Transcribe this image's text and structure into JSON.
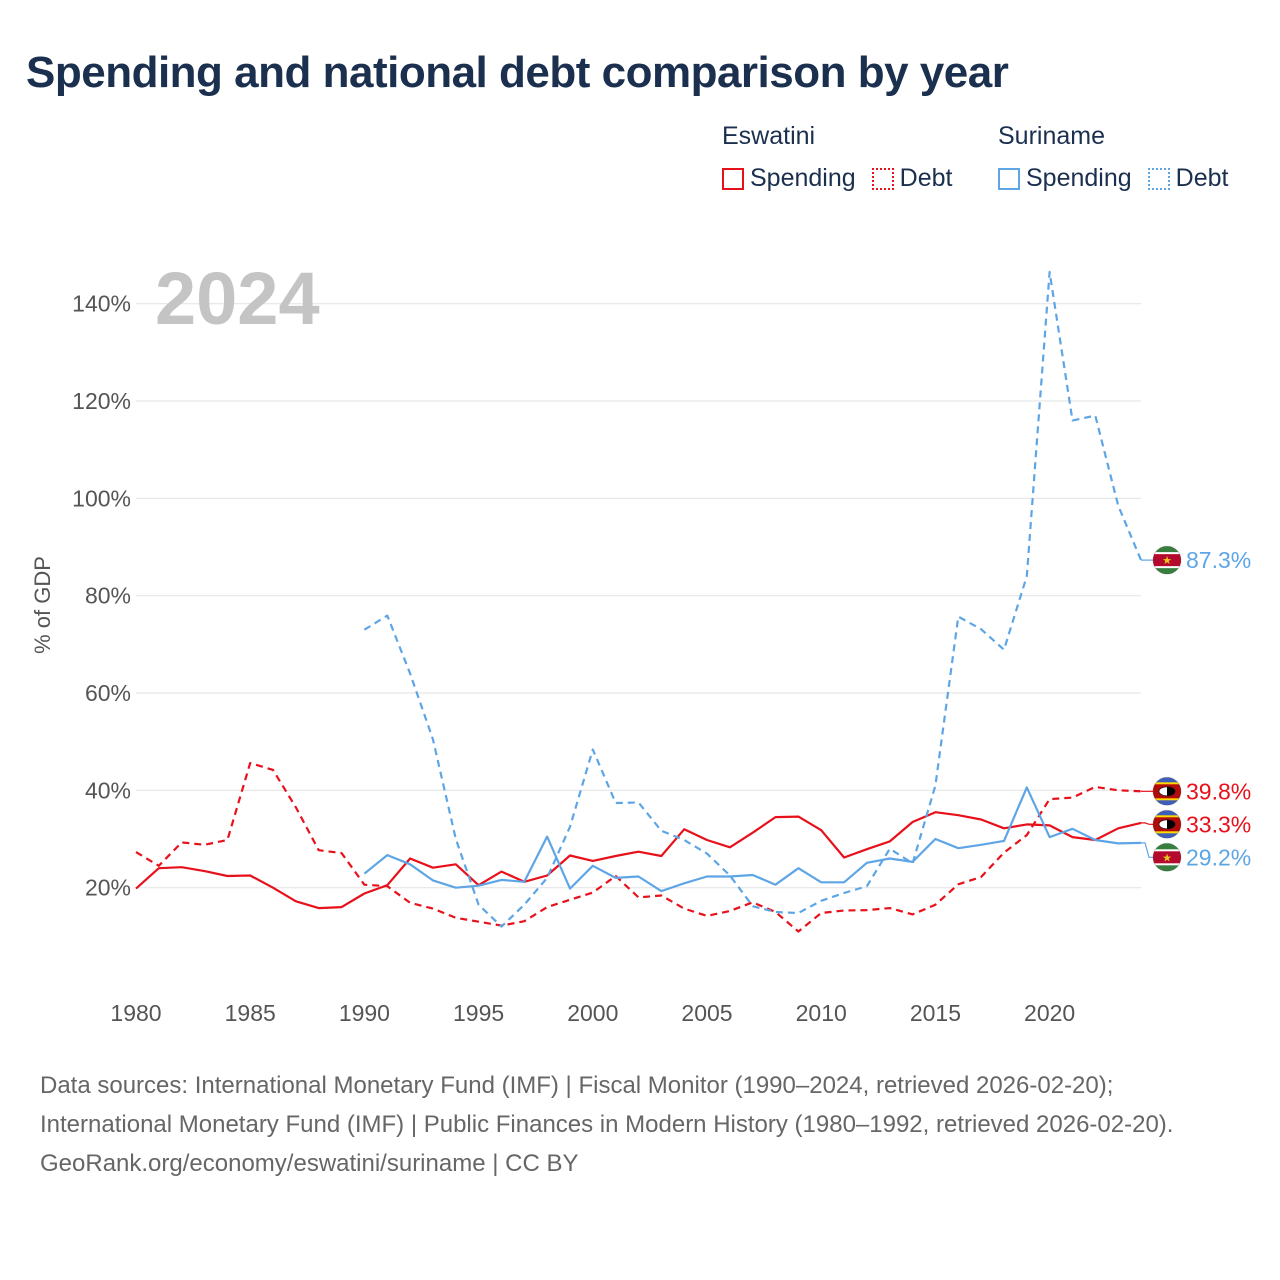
{
  "title": "Spending and national debt comparison by year",
  "legend": {
    "eswatini": {
      "title": "Eswatini",
      "spending": "Spending",
      "debt": "Debt"
    },
    "suriname": {
      "title": "Suriname",
      "spending": "Spending",
      "debt": "Debt"
    }
  },
  "colors": {
    "eswatini": "#e8101a",
    "suriname": "#5ea5e6",
    "grid": "#e6e6e6",
    "text": "#1b2f4e"
  },
  "footer": {
    "sources": "Data sources: International Monetary Fund (IMF) | Fiscal Monitor (1990–2024, retrieved 2026-02-20); International Monetary Fund (IMF) | Public Finances in Modern History (1980–1992, retrieved 2026-02-20).",
    "credit": "GeoRank.org/economy/eswatini/suriname | CC BY"
  },
  "chart_data": {
    "type": "line",
    "year_label": "2024",
    "ylabel": "% of GDP",
    "xlim": [
      1980,
      2024
    ],
    "ylim": [
      0,
      150
    ],
    "yticks": [
      20,
      40,
      60,
      80,
      100,
      120,
      140
    ],
    "ytick_labels": [
      "20%",
      "40%",
      "60%",
      "80%",
      "100%",
      "120%",
      "140%"
    ],
    "xticks": [
      1980,
      1985,
      1990,
      1995,
      2000,
      2005,
      2010,
      2015,
      2020
    ],
    "xtick_labels": [
      "1980",
      "1985",
      "1990",
      "1995",
      "2000",
      "2005",
      "2010",
      "2015",
      "2020"
    ],
    "series": [
      {
        "name": "Eswatini Spending",
        "country": "eswatini",
        "style": "solid",
        "color": "#e8101a",
        "end_label": "33.3%",
        "start_year": 1980,
        "values": [
          19.8,
          24.0,
          24.2,
          23.4,
          22.4,
          22.5,
          20.0,
          17.2,
          15.8,
          16.0,
          18.8,
          20.5,
          26.0,
          24.1,
          24.8,
          20.5,
          23.3,
          21.2,
          22.5,
          26.6,
          25.5,
          26.5,
          27.4,
          26.5,
          32.0,
          29.8,
          28.3,
          31.3,
          34.5,
          34.6,
          31.8,
          26.2,
          27.9,
          29.5,
          33.5,
          35.5,
          34.9,
          34.0,
          32.2,
          33.0,
          32.8,
          30.4,
          29.8,
          32.2,
          33.3
        ]
      },
      {
        "name": "Eswatini Debt",
        "country": "eswatini",
        "style": "dashed",
        "color": "#e8101a",
        "end_label": "39.8%",
        "start_year": 1980,
        "values": [
          27.3,
          24.5,
          29.3,
          28.8,
          29.8,
          45.6,
          44.2,
          36.5,
          27.7,
          27.1,
          20.6,
          20.3,
          16.9,
          15.7,
          13.8,
          13.0,
          12.2,
          13.1,
          16.0,
          17.5,
          19.0,
          22.4,
          18.0,
          18.4,
          15.7,
          14.2,
          15.2,
          17.0,
          15.0,
          11.0,
          14.8,
          15.3,
          15.4,
          15.8,
          14.5,
          16.5,
          20.7,
          22.2,
          27.2,
          30.8,
          38.2,
          38.5,
          40.7,
          40.0,
          39.8
        ]
      },
      {
        "name": "Suriname Spending",
        "country": "suriname",
        "style": "solid",
        "color": "#5ea5e6",
        "end_label": "29.2%",
        "start_year": 1990,
        "values": [
          22.9,
          26.7,
          24.8,
          21.5,
          20.0,
          20.4,
          21.6,
          21.2,
          30.5,
          19.8,
          24.5,
          22.0,
          22.3,
          19.3,
          20.9,
          22.3,
          22.3,
          22.6,
          20.6,
          24.0,
          21.1,
          21.1,
          25.1,
          26.0,
          25.3,
          30.0,
          28.1,
          28.8,
          29.6,
          40.6,
          30.4,
          32.1,
          29.8,
          29.1,
          29.2
        ]
      },
      {
        "name": "Suriname Debt",
        "country": "suriname",
        "style": "dashed",
        "color": "#5ea5e6",
        "end_label": "87.3%",
        "start_year": 1990,
        "values": [
          73.0,
          75.9,
          64.0,
          50.5,
          30.0,
          16.5,
          12.0,
          16.5,
          22.0,
          32.5,
          48.4,
          37.4,
          37.5,
          31.7,
          29.8,
          27.0,
          22.5,
          16.2,
          15.0,
          14.8,
          17.3,
          18.9,
          20.3,
          28.0,
          25.0,
          41.0,
          75.7,
          73.1,
          68.9,
          84.0,
          146.5,
          116.0,
          117.0,
          98.5,
          87.3
        ]
      }
    ]
  }
}
